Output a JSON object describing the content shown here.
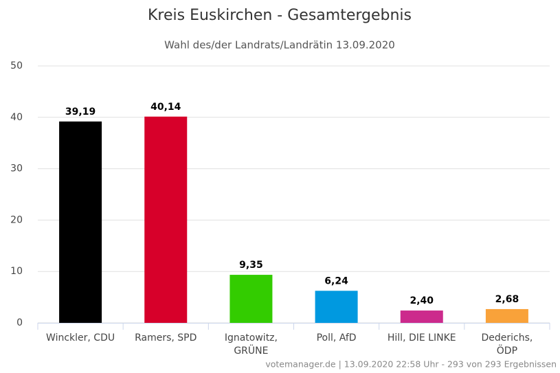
{
  "chart_data": {
    "type": "bar",
    "title": "Kreis Euskirchen - Gesamtergebnis",
    "subtitle": "Wahl des/der Landrats/Landrätin 13.09.2020",
    "categories": [
      "Winckler, CDU",
      "Ramers, SPD",
      "Ignatowitz,\nGRÜNE",
      "Poll, AfD",
      "Hill, DIE LINKE",
      "Dederichs,\nÖDP"
    ],
    "values": [
      39.19,
      40.14,
      9.35,
      6.24,
      2.4,
      2.68
    ],
    "value_labels": [
      "39,19",
      "40,14",
      "9,35",
      "6,24",
      "2,40",
      "2,68"
    ],
    "colors": [
      "#000000",
      "#d7002a",
      "#33cc00",
      "#0099e0",
      "#cc2a8c",
      "#f9a23a"
    ],
    "ylim": [
      0,
      50
    ],
    "yticks": [
      0,
      10,
      20,
      30,
      40,
      50
    ],
    "grid": true,
    "footer": "votemanager.de | 13.09.2020 22:58 Uhr - 293 von 293 Ergebnissen"
  }
}
